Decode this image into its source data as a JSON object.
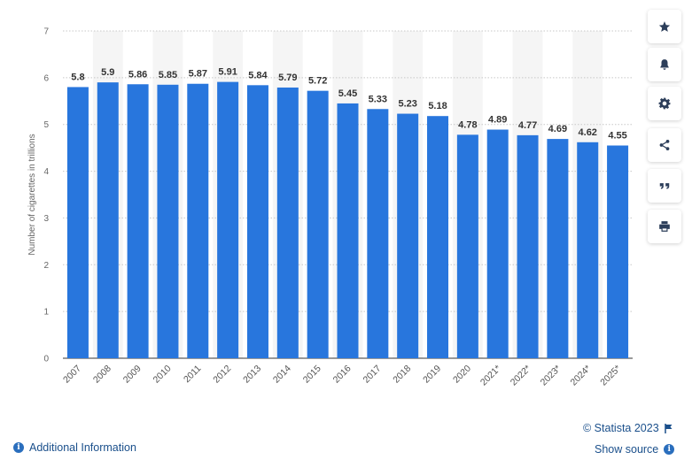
{
  "chart_data": {
    "type": "bar",
    "categories": [
      "2007",
      "2008",
      "2009",
      "2010",
      "2011",
      "2012",
      "2013",
      "2014",
      "2015",
      "2016",
      "2017",
      "2018",
      "2019",
      "2020",
      "2021*",
      "2022*",
      "2023*",
      "2024*",
      "2025*"
    ],
    "values": [
      5.8,
      5.9,
      5.86,
      5.85,
      5.87,
      5.91,
      5.84,
      5.79,
      5.72,
      5.45,
      5.33,
      5.23,
      5.18,
      4.78,
      4.89,
      4.77,
      4.69,
      4.62,
      4.55
    ],
    "value_labels": [
      "5.8",
      "5.9",
      "5.86",
      "5.85",
      "5.87",
      "5.91",
      "5.84",
      "5.79",
      "5.72",
      "5.45",
      "5.33",
      "5.23",
      "5.18",
      "4.78",
      "4.89",
      "4.77",
      "4.69",
      "4.62",
      "4.55"
    ],
    "ylabel": "Number of cigarettes in trillions",
    "xlabel": "",
    "ylim": [
      0,
      7
    ],
    "yticks": [
      "0",
      "1",
      "2",
      "3",
      "4",
      "5",
      "6",
      "7"
    ],
    "grid": true,
    "bar_color": "#2876dd",
    "band_color": "#f5f5f5"
  },
  "toolbar": {
    "icons": [
      "star-icon",
      "bell-icon",
      "gear-icon",
      "share-icon",
      "quote-icon",
      "print-icon"
    ]
  },
  "footer": {
    "copyright": "© Statista 2023",
    "show_source": "Show source",
    "additional_info": "Additional Information"
  },
  "colors": {
    "link": "#1a4f8b",
    "accent": "#2a6ebd"
  }
}
